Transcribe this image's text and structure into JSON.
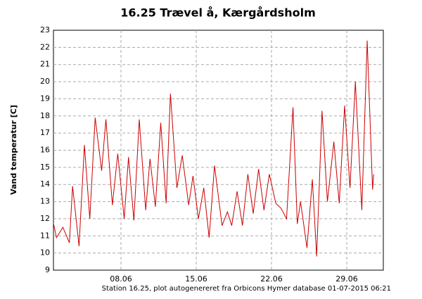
{
  "chart_data": {
    "type": "line",
    "title": "16.25 Trævel å, Kærgårdsholm",
    "y_label": "Vand temperatur [C]",
    "footer": "Station 16.25, plot autogenereret fra Orbicons Hymer database 01-07-2015 06:21",
    "x": [
      1.7,
      2.0,
      2.6,
      3.2,
      3.5,
      4.1,
      4.6,
      5.1,
      5.6,
      6.2,
      6.6,
      7.2,
      7.7,
      8.3,
      8.7,
      9.2,
      9.7,
      10.3,
      10.7,
      11.2,
      11.7,
      12.2,
      12.6,
      13.2,
      13.7,
      14.3,
      14.7,
      15.2,
      15.7,
      16.2,
      16.7,
      17.4,
      17.9,
      18.3,
      18.8,
      19.3,
      19.8,
      20.3,
      20.8,
      21.3,
      21.8,
      22.4,
      22.9,
      23.4,
      24.0,
      24.4,
      24.7,
      25.3,
      25.8,
      26.2,
      26.7,
      27.2,
      27.8,
      28.3,
      28.8,
      29.3,
      29.8,
      30.4,
      30.9,
      31.4,
      31.5
    ],
    "series": [
      {
        "name": "Vand temperatur",
        "color": "#cc0000",
        "values": [
          11.8,
          10.9,
          11.5,
          10.6,
          13.9,
          10.4,
          16.3,
          12.0,
          17.9,
          14.8,
          17.8,
          12.8,
          15.8,
          12.0,
          15.6,
          11.9,
          17.8,
          12.5,
          15.5,
          12.7,
          17.6,
          12.9,
          19.3,
          13.8,
          15.7,
          12.8,
          14.5,
          12.0,
          13.8,
          10.9,
          15.1,
          11.6,
          12.4,
          11.6,
          13.6,
          11.6,
          14.6,
          12.3,
          14.9,
          12.5,
          14.6,
          12.9,
          12.6,
          12.0,
          18.5,
          11.7,
          13.0,
          10.3,
          14.3,
          9.8,
          18.3,
          13.0,
          16.5,
          12.9,
          18.6,
          13.8,
          20.0,
          12.5,
          22.4,
          13.7,
          14.6
        ]
      }
    ],
    "xlim": [
      1.72,
      32.4
    ],
    "xticks": [
      {
        "value": 8,
        "label": "08.06"
      },
      {
        "value": 15,
        "label": "15.06"
      },
      {
        "value": 22,
        "label": "22.06"
      },
      {
        "value": 29,
        "label": "29.06"
      }
    ],
    "ylim": [
      9,
      23
    ],
    "yticks": [
      9,
      10,
      11,
      12,
      13,
      14,
      15,
      16,
      17,
      18,
      19,
      20,
      21,
      22,
      23
    ],
    "grid": true
  }
}
